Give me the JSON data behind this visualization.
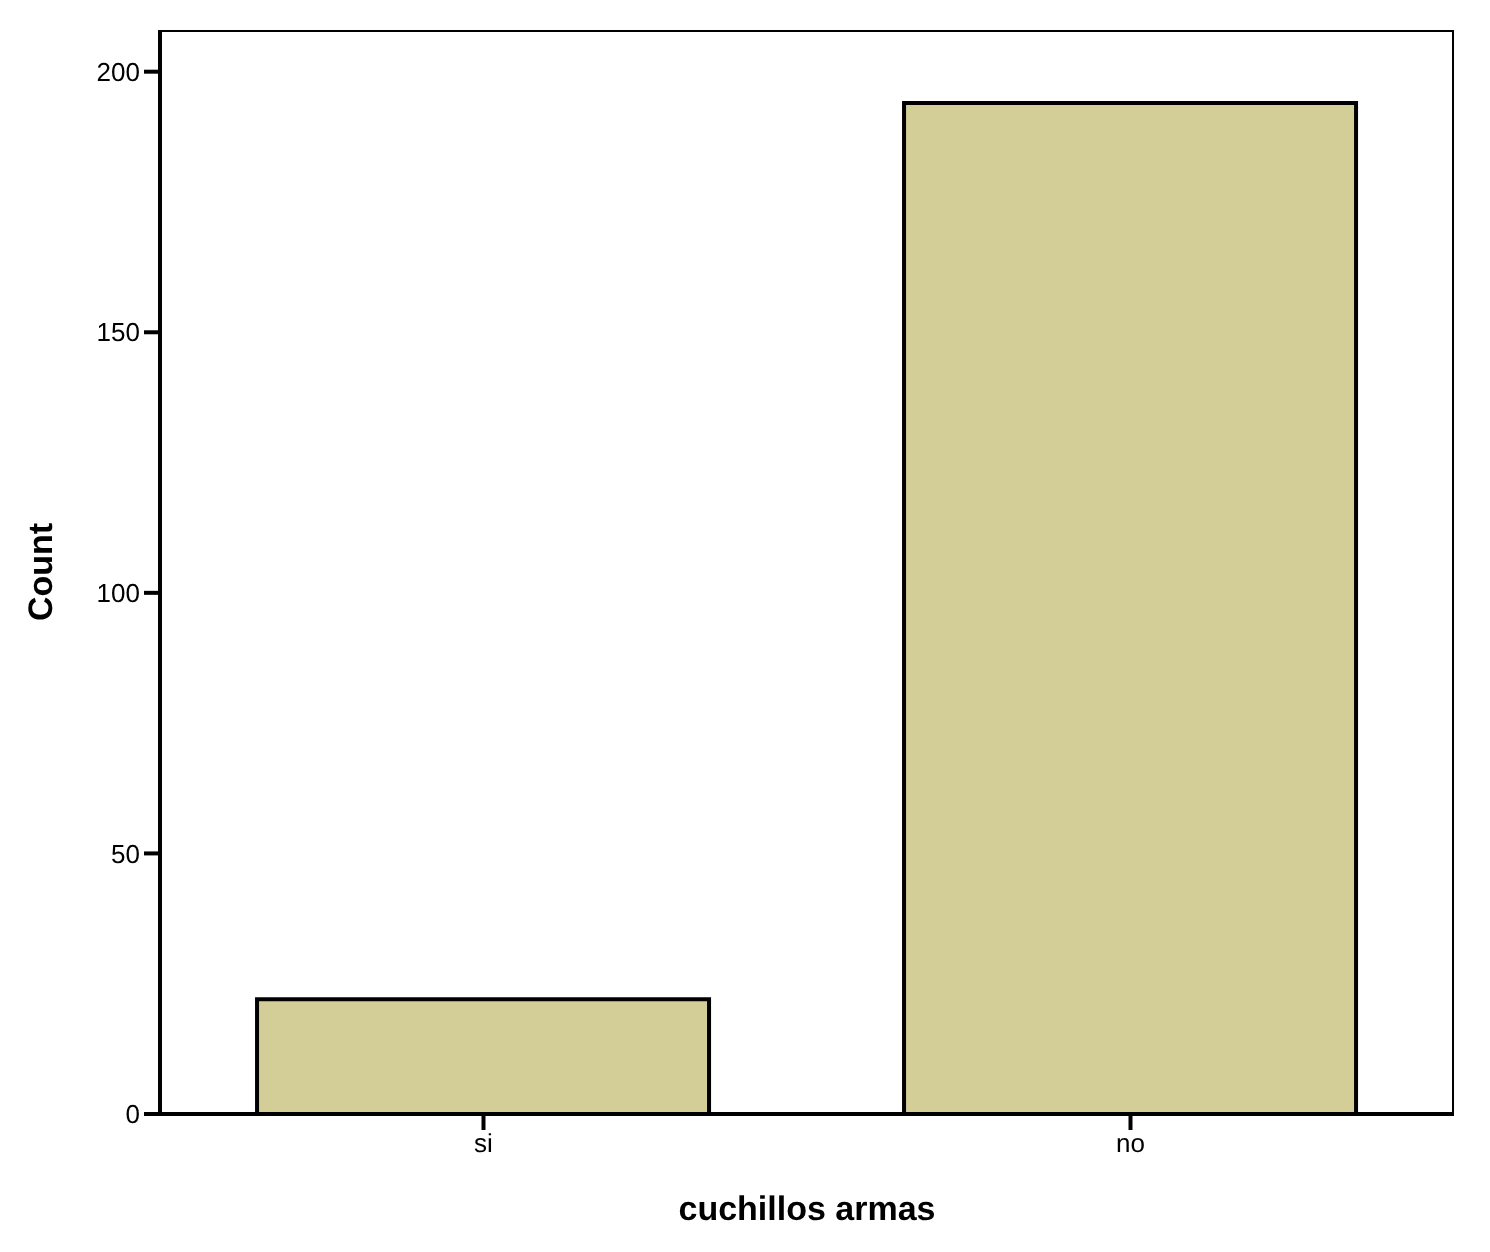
{
  "chart_data": {
    "type": "bar",
    "xlabel": "cuchillos armas",
    "ylabel": "Count",
    "categories": [
      "si",
      "no"
    ],
    "values": [
      22,
      194
    ],
    "color": "#d3ce98",
    "ylim": [
      0,
      208
    ],
    "yticks": [
      0,
      50,
      100,
      150,
      200
    ],
    "grid": false,
    "legend": false
  }
}
